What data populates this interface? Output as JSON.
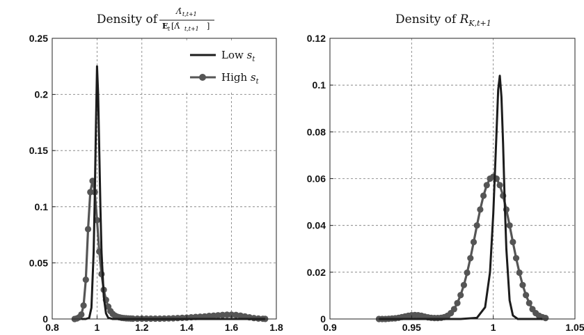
{
  "chart_data": [
    {
      "type": "line",
      "title": "Density of Λ̂_{t,t+1} / E_t[Λ̂_{t,t+1}]",
      "title_prefix": "Density of ",
      "title_numerator": "Λ̂",
      "title_numerator_sub": "t,t+1",
      "title_denominator": "E",
      "title_denominator_sub": "t",
      "title_denominator_rest": "[Λ̂",
      "title_denominator_rest_sub": "t,t+1",
      "title_denominator_close": "]",
      "xlabel": "",
      "ylabel": "",
      "xlim": [
        0.8,
        1.8
      ],
      "ylim": [
        0,
        0.25
      ],
      "xticks": [
        0.8,
        1,
        1.2,
        1.4,
        1.6,
        1.8
      ],
      "xtick_labels": [
        "0.8",
        "1",
        "1.2",
        "1.4",
        "1.6",
        "1.8"
      ],
      "yticks": [
        0,
        0.05,
        0.1,
        0.15,
        0.2,
        0.25
      ],
      "ytick_labels": [
        "0",
        "0.05",
        "0.1",
        "0.15",
        "0.2",
        "0.25"
      ],
      "grid": true,
      "legend_position": "top-right",
      "legend": [
        {
          "label": "Low ",
          "label_math": "s",
          "label_sub": "t",
          "style": "line"
        },
        {
          "label": "High ",
          "label_math": "s",
          "label_sub": "t",
          "style": "line-marker"
        }
      ],
      "series": [
        {
          "name": "Low s_t",
          "color": "#1c1c1c",
          "x": [
            0.93,
            0.95,
            0.965,
            0.975,
            0.985,
            0.99,
            0.995,
            1.0,
            1.005,
            1.01,
            1.015,
            1.02,
            1.03,
            1.04,
            1.05,
            1.07,
            1.1,
            1.2,
            1.4,
            1.6,
            1.75
          ],
          "y": [
            0,
            0,
            0.001,
            0.01,
            0.06,
            0.11,
            0.17,
            0.225,
            0.2,
            0.15,
            0.1,
            0.06,
            0.02,
            0.005,
            0.001,
            0,
            0,
            0,
            0,
            0,
            0
          ]
        },
        {
          "name": "High s_t",
          "color": "#555555",
          "marker": "circle",
          "x": [
            0.9,
            0.91,
            0.92,
            0.93,
            0.94,
            0.95,
            0.96,
            0.97,
            0.98,
            0.99,
            1.0,
            1.01,
            1.02,
            1.03,
            1.04,
            1.05,
            1.06,
            1.07,
            1.08,
            1.09,
            1.1,
            1.11,
            1.12,
            1.13,
            1.14,
            1.15,
            1.16,
            1.18,
            1.2,
            1.22,
            1.24,
            1.26,
            1.28,
            1.3,
            1.32,
            1.34,
            1.36,
            1.38,
            1.4,
            1.42,
            1.44,
            1.46,
            1.48,
            1.5,
            1.52,
            1.54,
            1.56,
            1.58,
            1.6,
            1.62,
            1.64,
            1.66,
            1.68,
            1.7,
            1.72,
            1.74,
            1.75
          ],
          "y": [
            0,
            0.0005,
            0.0015,
            0.004,
            0.012,
            0.035,
            0.08,
            0.113,
            0.123,
            0.113,
            0.088,
            0.06,
            0.04,
            0.026,
            0.017,
            0.011,
            0.007,
            0.0045,
            0.003,
            0.002,
            0.0015,
            0.001,
            0.0008,
            0.0006,
            0.0005,
            0.0004,
            0.0003,
            0.0003,
            0.0003,
            0.0003,
            0.0003,
            0.0003,
            0.0003,
            0.0004,
            0.0005,
            0.0006,
            0.0008,
            0.001,
            0.0012,
            0.0015,
            0.0018,
            0.002,
            0.0023,
            0.0027,
            0.003,
            0.0033,
            0.0036,
            0.0038,
            0.0038,
            0.0036,
            0.003,
            0.0023,
            0.0015,
            0.0008,
            0.0004,
            0.0002,
            0.0001
          ]
        }
      ]
    },
    {
      "type": "line",
      "title": "Density of R_{K,t+1}",
      "title_prefix": "Density of ",
      "title_math": "R",
      "title_sub": "K,t+1",
      "xlabel": "",
      "ylabel": "",
      "xlim": [
        0.9,
        1.05
      ],
      "ylim": [
        0,
        0.12
      ],
      "xticks": [
        0.9,
        0.95,
        1,
        1.05
      ],
      "xtick_labels": [
        "0.9",
        "0.95",
        "1",
        "1.05"
      ],
      "yticks": [
        0,
        0.02,
        0.04,
        0.06,
        0.08,
        0.1,
        0.12
      ],
      "ytick_labels": [
        "0",
        "0.02",
        "0.04",
        "0.06",
        "0.08",
        "0.1",
        "0.12"
      ],
      "grid": true,
      "series": [
        {
          "name": "Low s_t",
          "color": "#1c1c1c",
          "x": [
            0.93,
            0.98,
            0.99,
            0.995,
            0.998,
            1.0,
            1.002,
            1.003,
            1.004,
            1.005,
            1.006,
            1.007,
            1.008,
            1.01,
            1.012,
            1.015,
            1.02,
            1.03
          ],
          "y": [
            0,
            0,
            0.0005,
            0.005,
            0.02,
            0.045,
            0.08,
            0.098,
            0.104,
            0.095,
            0.075,
            0.05,
            0.03,
            0.008,
            0.0015,
            0,
            0,
            0
          ],
          "extend_to": 1.03
        },
        {
          "name": "High s_t",
          "color": "#555555",
          "marker": "circle",
          "x": [
            0.93,
            0.932,
            0.934,
            0.936,
            0.938,
            0.94,
            0.942,
            0.944,
            0.946,
            0.948,
            0.95,
            0.952,
            0.954,
            0.956,
            0.958,
            0.96,
            0.962,
            0.964,
            0.966,
            0.968,
            0.97,
            0.972,
            0.974,
            0.976,
            0.978,
            0.98,
            0.982,
            0.984,
            0.986,
            0.988,
            0.99,
            0.992,
            0.994,
            0.996,
            0.998,
            1.0,
            1.002,
            1.004,
            1.006,
            1.008,
            1.01,
            1.012,
            1.014,
            1.016,
            1.018,
            1.02,
            1.022,
            1.024,
            1.026,
            1.028,
            1.03,
            1.032
          ],
          "y": [
            0,
            0,
            0,
            0.0001,
            0.0002,
            0.0003,
            0.0005,
            0.0008,
            0.0011,
            0.0014,
            0.0016,
            0.0017,
            0.0016,
            0.0014,
            0.001,
            0.0007,
            0.0005,
            0.0004,
            0.0004,
            0.0005,
            0.0008,
            0.0014,
            0.0025,
            0.0042,
            0.0068,
            0.0102,
            0.0145,
            0.0198,
            0.026,
            0.0329,
            0.04,
            0.0468,
            0.0527,
            0.0572,
            0.06,
            0.0608,
            0.06,
            0.0572,
            0.0527,
            0.0468,
            0.04,
            0.0329,
            0.026,
            0.0198,
            0.0145,
            0.0102,
            0.0068,
            0.0042,
            0.0025,
            0.0014,
            0.0008,
            0.0004
          ]
        }
      ]
    }
  ]
}
